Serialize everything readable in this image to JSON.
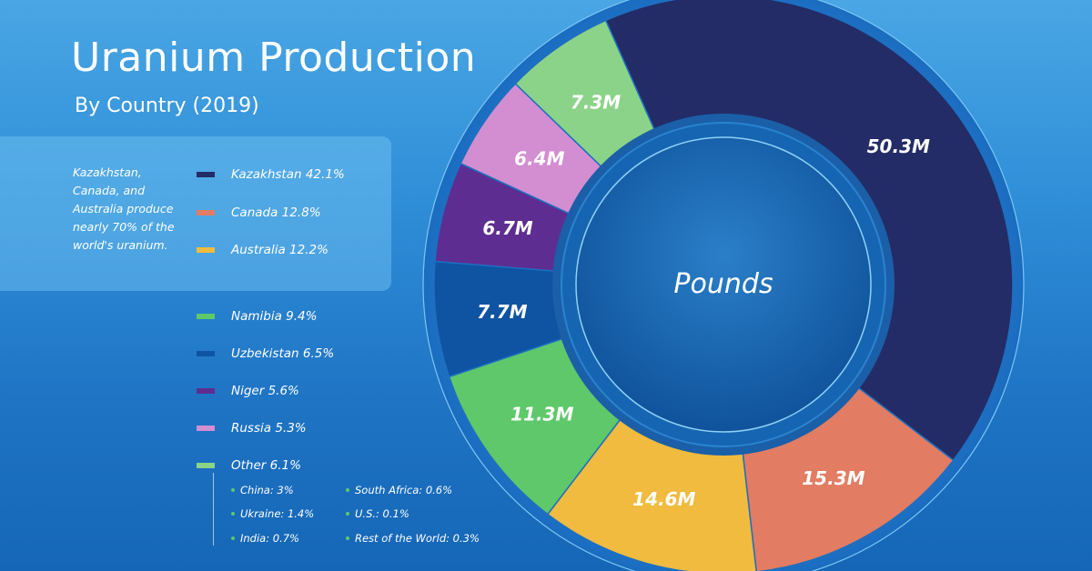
{
  "title": "Uranium Production",
  "subtitle": "By Country (2019)",
  "note": "Kazakhstan, Canada, and Australia produce nearly 70% of the world's uranium.",
  "center_label": "Pounds",
  "legend": [
    {
      "label": "Kazakhstan 42.1%",
      "color": "#232c66"
    },
    {
      "label": "Canada 12.8%",
      "color": "#e27c63"
    },
    {
      "label": "Australia 12.2%",
      "color": "#f0bb3e"
    },
    {
      "label": "Namibia 9.4%",
      "color": "#5ec86a"
    },
    {
      "label": "Uzbekistan 6.5%",
      "color": "#0e54a3"
    },
    {
      "label": "Niger 5.6%",
      "color": "#5e2d91"
    },
    {
      "label": "Russia 5.3%",
      "color": "#d38ed2"
    },
    {
      "label": "Other 6.1%",
      "color": "#8bd388"
    }
  ],
  "other_breakdown": [
    {
      "label": "China: 3%"
    },
    {
      "label": "Ukraine: 1.4%"
    },
    {
      "label": "India: 0.7%"
    },
    {
      "label": "South Africa: 0.6%"
    },
    {
      "label": "U.S.: 0.1%"
    },
    {
      "label": "Rest of the World: 0.3%"
    }
  ],
  "chart_data": {
    "type": "pie",
    "title": "Uranium Production",
    "subtitle": "By Country (2019)",
    "unit": "Pounds",
    "categories": [
      "Kazakhstan",
      "Canada",
      "Australia",
      "Namibia",
      "Uzbekistan",
      "Niger",
      "Russia",
      "Other"
    ],
    "values": [
      50.3,
      15.3,
      14.6,
      11.3,
      7.7,
      6.7,
      6.4,
      7.3
    ],
    "percentages": [
      42.1,
      12.8,
      12.2,
      9.4,
      6.5,
      5.6,
      5.3,
      6.1
    ],
    "value_labels": [
      "50.3M",
      "15.3M",
      "14.6M",
      "11.3M",
      "7.7M",
      "6.7M",
      "6.4M",
      "7.3M"
    ],
    "colors": [
      "#232c66",
      "#e27c63",
      "#f0bb3e",
      "#5ec86a",
      "#0e54a3",
      "#5e2d91",
      "#d38ed2",
      "#8bd388"
    ],
    "legend_position": "left"
  }
}
